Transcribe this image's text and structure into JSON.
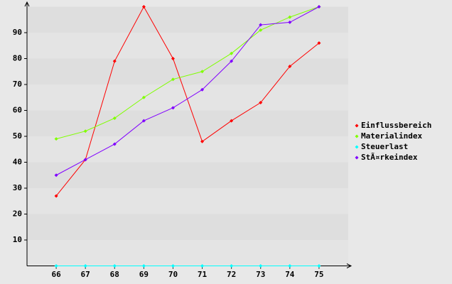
{
  "chart_data": {
    "type": "line",
    "x": [
      66,
      67,
      68,
      69,
      70,
      71,
      72,
      73,
      74,
      75
    ],
    "xlim": [
      65,
      76
    ],
    "xticks": [
      66,
      67,
      68,
      69,
      70,
      71,
      72,
      73,
      74,
      75
    ],
    "ylim": [
      0,
      100
    ],
    "yticks": [
      10,
      20,
      30,
      40,
      50,
      60,
      70,
      80,
      90
    ],
    "grid": true,
    "legend": "right",
    "series": [
      {
        "name": "Einflussbereich",
        "color": "#ff0000",
        "values": [
          27,
          41,
          79,
          100,
          80,
          48,
          56,
          63,
          77,
          86
        ]
      },
      {
        "name": "Materialindex",
        "color": "#80ff00",
        "values": [
          49,
          52,
          57,
          65,
          72,
          75,
          82,
          91,
          96,
          100
        ]
      },
      {
        "name": "Steuerlast",
        "color": "#00ffff",
        "values": [
          0,
          0,
          0,
          0,
          0,
          0,
          0,
          0,
          0,
          0
        ]
      },
      {
        "name": "StÃ¤rkeindex",
        "color": "#8000ff",
        "values": [
          35,
          41,
          47,
          56,
          61,
          68,
          79,
          93,
          94,
          100
        ]
      }
    ]
  }
}
